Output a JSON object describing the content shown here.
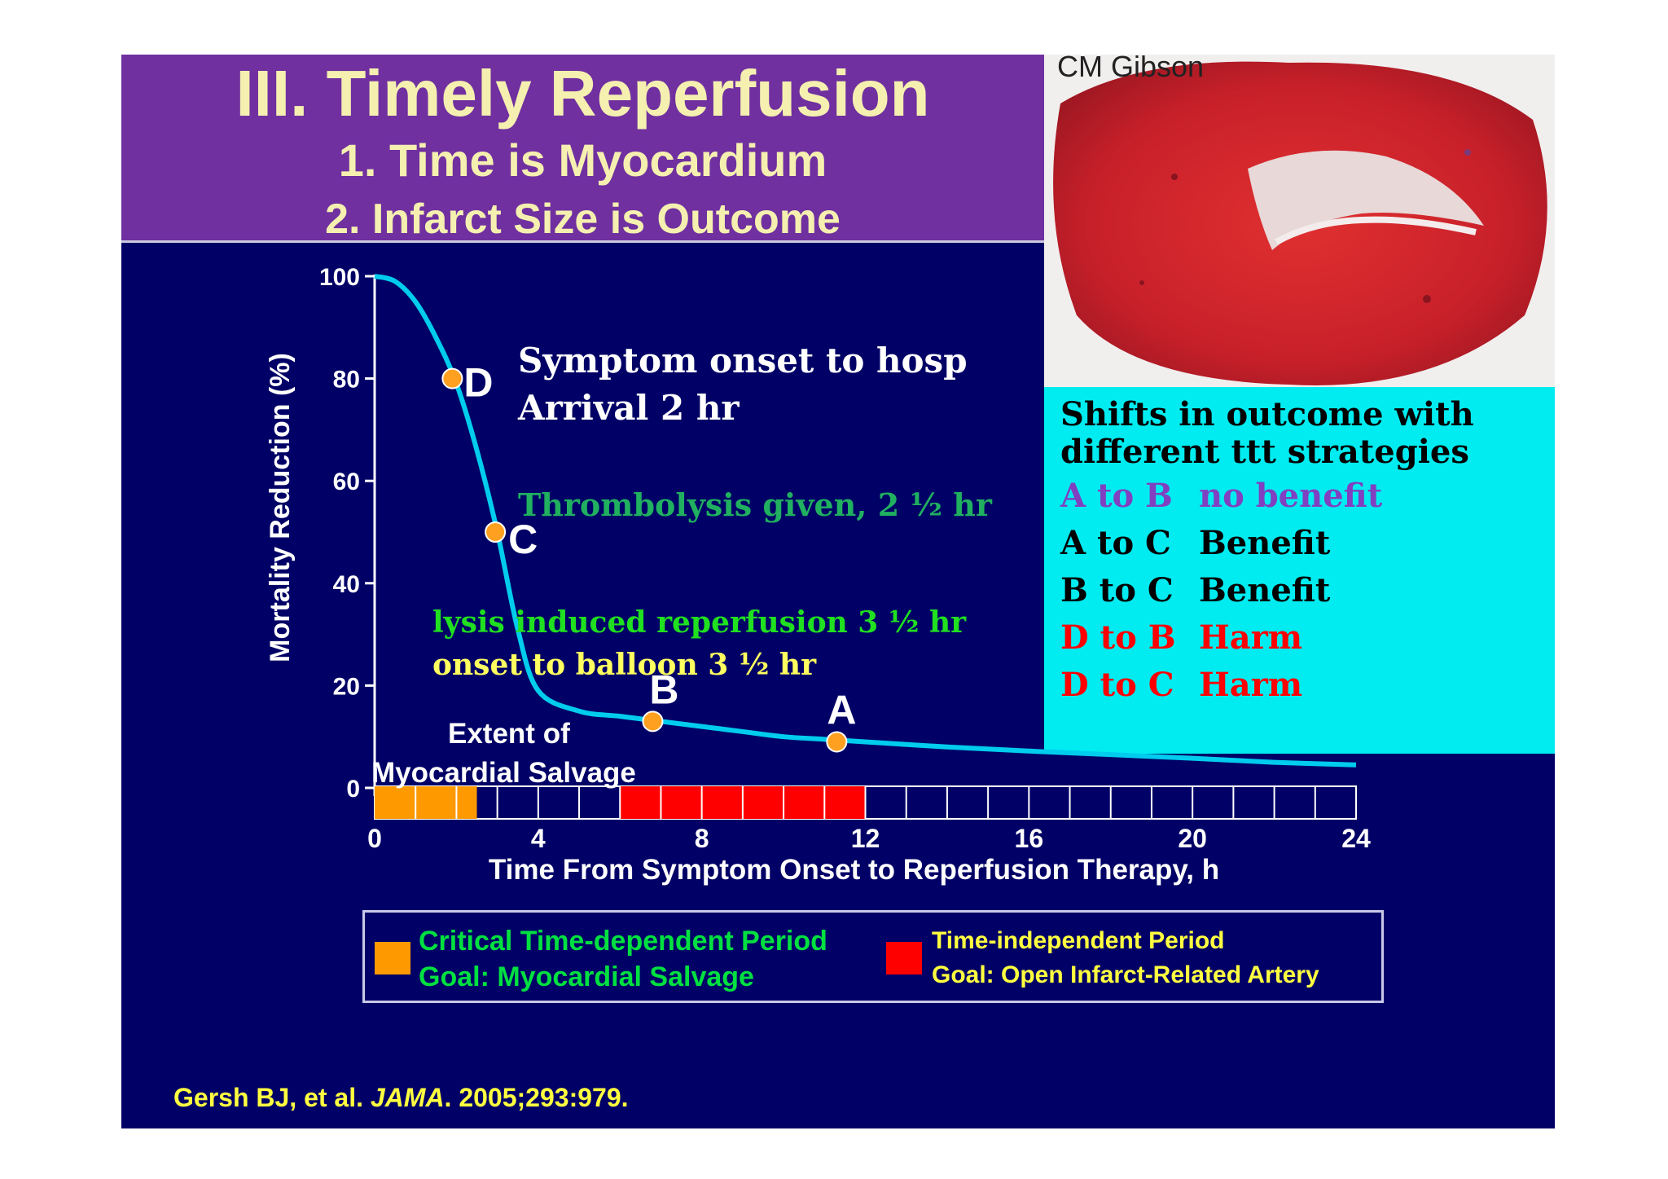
{
  "slide": {
    "title": "III. Timely Reperfusion",
    "subtitle_1": "1. Time is Myocardium",
    "subtitle_2": "2. Infarct Size is Outcome",
    "photo_credit": "CM Gibson",
    "background_color": "#000066",
    "banner_color": "#7030a0"
  },
  "annotations": {
    "symptom_onset_1": "Symptom onset to hosp",
    "symptom_onset_2": "Arrival  2 hr",
    "thrombolysis": "Thrombolysis given, 2 ½ hr",
    "lysis_1": "lysis  induced reperfusion 3 ½ hr",
    "lysis_2": "onset  to balloon 3 ½ hr",
    "salvage_1": "Extent of",
    "salvage_2": "Myocardial Salvage"
  },
  "outcome_box": {
    "heading_1": "Shifts in outcome with",
    "heading_2": "different ttt strategies",
    "rows": [
      {
        "pair": "A to B",
        "result": "no benefit",
        "color": "#8040c0"
      },
      {
        "pair": "A to C",
        "result": "Benefit",
        "color": "#000000"
      },
      {
        "pair": "B to C",
        "result": "Benefit",
        "color": "#000000"
      },
      {
        "pair": "D to B",
        "result": "Harm",
        "color": "#ff0000"
      },
      {
        "pair": "D to C",
        "result": "Harm",
        "color": "#ff0000"
      }
    ],
    "color": "#00ecf0"
  },
  "legend": {
    "critical_1": "Critical Time-dependent Period",
    "critical_2": "Goal: Myocardial Salvage",
    "independent_1": "Time-independent Period",
    "independent_2": "Goal: Open Infarct-Related Artery"
  },
  "citation": {
    "authors": "Gersh BJ, et al. ",
    "journal": "JAMA",
    "details": ". 2005;293:979."
  },
  "chart_data": {
    "type": "line",
    "xlabel": "Time From Symptom Onset to Reperfusion Therapy, h",
    "ylabel": "Mortality Reduction (%)",
    "xlim": [
      0,
      24
    ],
    "ylim": [
      0,
      100
    ],
    "x_ticks": [
      0,
      4,
      8,
      12,
      16,
      20,
      24
    ],
    "y_ticks": [
      0,
      20,
      40,
      60,
      80,
      100
    ],
    "grid": false,
    "curve_color": "#00ccee",
    "series": [
      {
        "x": [
          0,
          0.5,
          1,
          1.5,
          2,
          2.5,
          3,
          3.5,
          4,
          5,
          6,
          7,
          8,
          9,
          10,
          11,
          12,
          14,
          16,
          18,
          20,
          22,
          24
        ],
        "values": [
          100,
          99,
          95,
          88,
          79,
          66,
          50,
          31,
          19,
          15,
          14,
          13,
          12,
          11,
          10,
          9.5,
          9,
          8,
          7.2,
          6.5,
          5.8,
          5,
          4.5
        ]
      }
    ],
    "points": [
      {
        "label": "D",
        "x": 1.9,
        "y": 80
      },
      {
        "label": "C",
        "x": 2.95,
        "y": 50
      },
      {
        "label": "B",
        "x": 6.8,
        "y": 13
      },
      {
        "label": "A",
        "x": 11.3,
        "y": 9
      }
    ],
    "period_bar": {
      "cell_hours": 1,
      "critical": {
        "start": 0,
        "end": 2.5,
        "color": "#ff9900"
      },
      "independent": {
        "start": 6,
        "end": 12,
        "color": "#ff0000"
      }
    }
  }
}
